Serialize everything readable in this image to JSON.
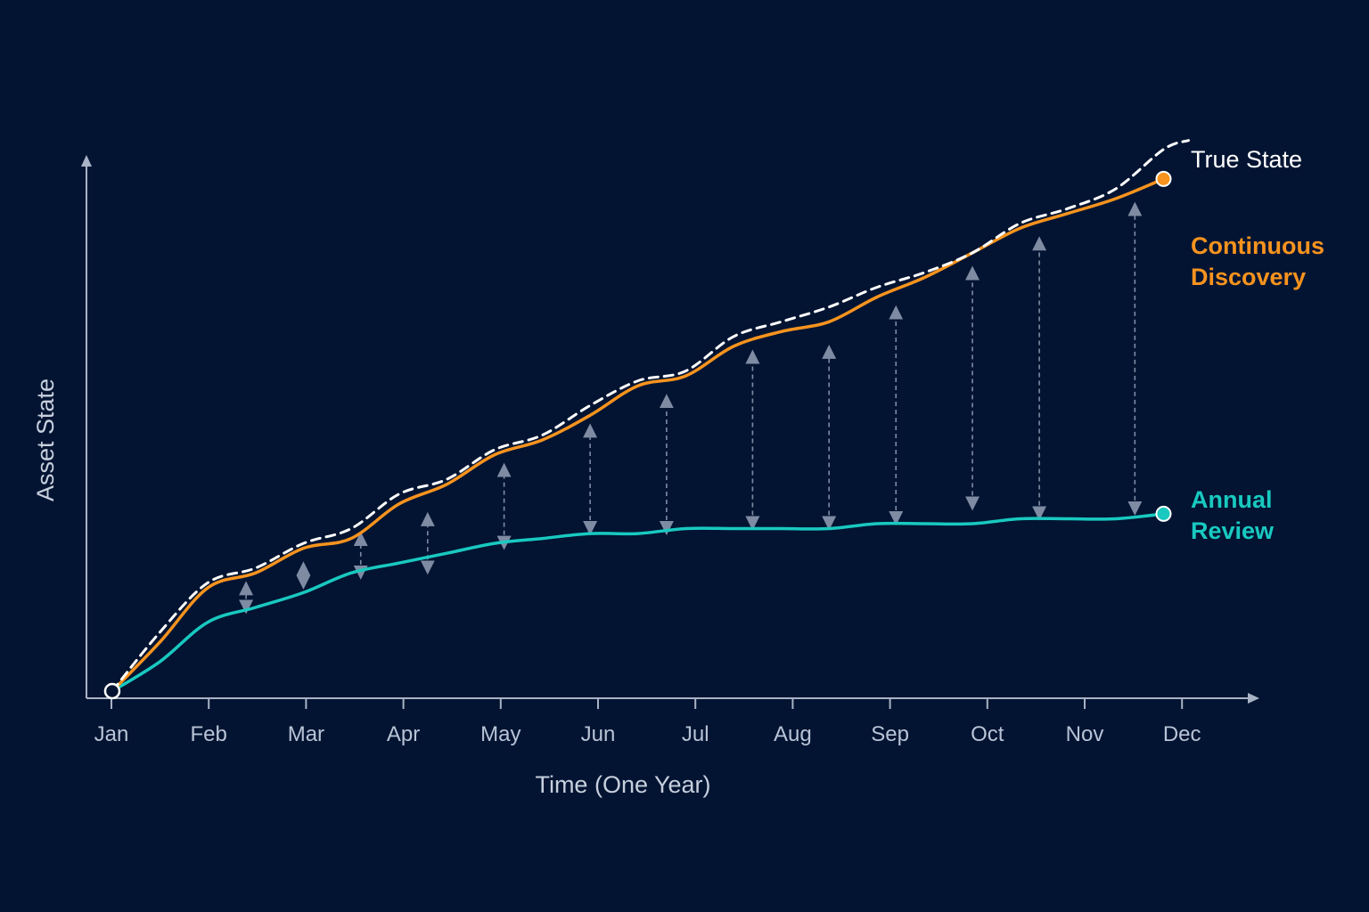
{
  "chart_data": {
    "type": "line",
    "title": "",
    "xlabel": "Time (One Year)",
    "ylabel": "Asset State",
    "categories": [
      "Jan",
      "Feb",
      "Mar",
      "Apr",
      "May",
      "Jun",
      "Jul",
      "Aug",
      "Sep",
      "Oct",
      "Nov",
      "Dec"
    ],
    "x": [
      0,
      0.5,
      1,
      1.5,
      2,
      2.5,
      3,
      3.5,
      4,
      4.5,
      5,
      5.5,
      6,
      6.5,
      7,
      7.5,
      8,
      8.5,
      9,
      9.5,
      10,
      10.5,
      11
    ],
    "xlim": [
      -0.27,
      11.9
    ],
    "ylim": [
      0,
      100
    ],
    "grid": false,
    "legend": "right, inline at line ends",
    "series": [
      {
        "name": "True State",
        "color": "#ffffff",
        "style": "dashed",
        "values": [
          0,
          12,
          22,
          25,
          30,
          33,
          40,
          43,
          49,
          52,
          58,
          63,
          65,
          72,
          75,
          78,
          82,
          85,
          89,
          95,
          98,
          102,
          110
        ]
      },
      {
        "name": "Continuous Discovery",
        "color": "#f7931e",
        "style": "solid",
        "values": [
          0,
          10,
          21,
          24,
          29,
          31,
          38,
          42,
          48,
          51,
          56,
          62,
          64,
          70,
          73,
          75,
          80,
          84,
          89,
          94,
          97,
          100,
          104
        ]
      },
      {
        "name": "Annual Review",
        "color": "#19c9c0",
        "style": "solid",
        "values": [
          0,
          6,
          14,
          17,
          20,
          24,
          26,
          28,
          30,
          31,
          32,
          32,
          33,
          33,
          33,
          33,
          34,
          34,
          34,
          35,
          35,
          35,
          36
        ]
      }
    ],
    "gap_markers": [
      {
        "x": 1.4,
        "from": 16,
        "to": 22
      },
      {
        "x": 2.0,
        "from": 21,
        "to": 26
      },
      {
        "x": 2.6,
        "from": 23,
        "to": 32
      },
      {
        "x": 3.3,
        "from": 24,
        "to": 36
      },
      {
        "x": 4.1,
        "from": 29,
        "to": 46
      },
      {
        "x": 5.0,
        "from": 32,
        "to": 54
      },
      {
        "x": 5.8,
        "from": 32,
        "to": 60
      },
      {
        "x": 6.7,
        "from": 33,
        "to": 69
      },
      {
        "x": 7.5,
        "from": 33,
        "to": 70
      },
      {
        "x": 8.2,
        "from": 34,
        "to": 78
      },
      {
        "x": 9.0,
        "from": 37,
        "to": 86
      },
      {
        "x": 9.7,
        "from": 35,
        "to": 92
      },
      {
        "x": 10.7,
        "from": 36,
        "to": 99
      }
    ]
  }
}
